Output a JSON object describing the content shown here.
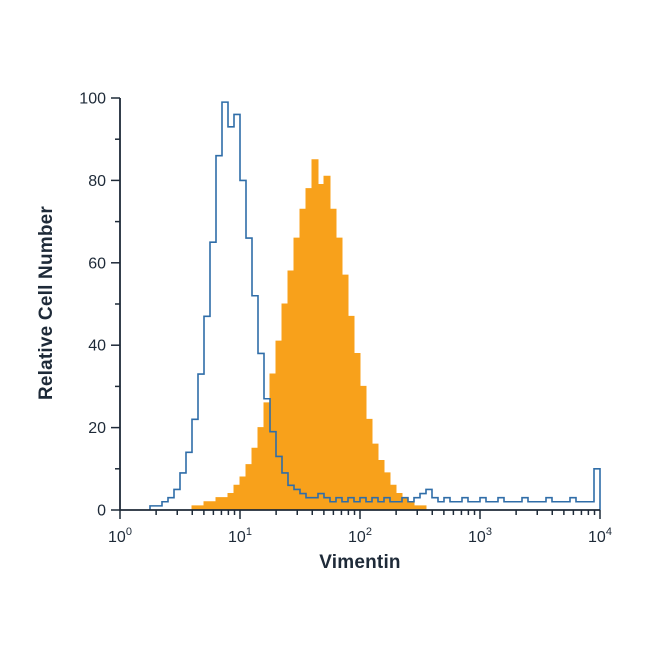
{
  "figure": {
    "background": "#ffffff"
  },
  "chart_data": {
    "type": "area",
    "subtype": "flow-cytometry-overlay-histogram",
    "title": "",
    "xlabel": "Vimentin",
    "ylabel": "Relative Cell Number",
    "x_scale": "log10",
    "x_log_range": [
      0,
      4
    ],
    "ylim": [
      0,
      100
    ],
    "y_ticks": [
      0,
      20,
      40,
      60,
      80,
      100
    ],
    "y_minor_ticks": [
      10,
      30,
      50,
      70,
      90
    ],
    "x_tick_base": 10,
    "x_major_tick_exponents": [
      0,
      1,
      2,
      3,
      4
    ],
    "grid": false,
    "legend": "none",
    "bin_width_log": 0.05,
    "bins_log_start": 0,
    "colors": {
      "axis": "#1e2a38",
      "text": "#1e2a38",
      "open_histogram": "#2f6da8",
      "filled_histogram": "#f8a11b"
    },
    "series": [
      {
        "name": "filled-orange-histogram",
        "style": "filled-step",
        "color_key": "filled_histogram",
        "values": [
          0,
          0,
          0,
          0,
          0,
          0,
          0,
          0,
          0,
          0,
          0,
          0,
          1,
          1,
          2,
          2,
          3,
          3,
          4,
          6,
          8,
          11,
          15,
          20,
          26,
          33,
          41,
          50,
          58,
          66,
          73,
          78,
          85,
          79,
          81,
          73,
          66,
          57,
          47,
          38,
          30,
          22,
          16,
          12,
          9,
          6,
          4,
          3,
          2,
          1,
          1,
          0,
          0,
          0,
          0,
          0,
          0,
          0,
          0,
          0,
          0,
          0,
          0,
          0,
          0,
          0,
          0,
          0,
          0,
          0,
          0,
          0,
          0,
          0,
          0,
          0,
          0,
          0,
          0,
          0
        ]
      },
      {
        "name": "open-blue-histogram",
        "style": "open-step-outline",
        "color_key": "open_histogram",
        "values": [
          0,
          0,
          0,
          0,
          0,
          1,
          1,
          2,
          3,
          5,
          9,
          14,
          22,
          33,
          47,
          65,
          86,
          99,
          93,
          96,
          80,
          66,
          52,
          38,
          27,
          19,
          13,
          9,
          6,
          5,
          4,
          3,
          3,
          4,
          3,
          2,
          3,
          2,
          3,
          2,
          3,
          2,
          3,
          2,
          3,
          2,
          2,
          3,
          2,
          3,
          4,
          5,
          3,
          2,
          3,
          2,
          2,
          3,
          2,
          2,
          3,
          2,
          2,
          3,
          2,
          2,
          2,
          3,
          2,
          2,
          2,
          3,
          2,
          2,
          2,
          3,
          2,
          2,
          2,
          10
        ]
      }
    ]
  }
}
